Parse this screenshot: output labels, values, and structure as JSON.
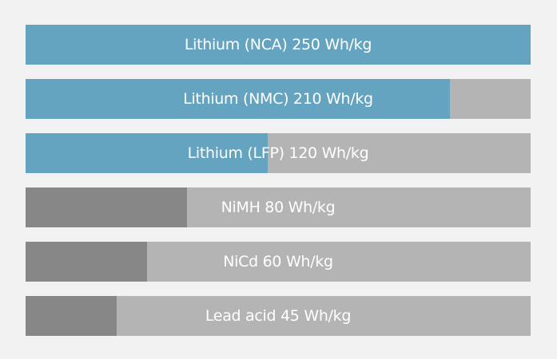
{
  "chart_data": {
    "type": "bar",
    "orientation": "horizontal",
    "unit": "Wh/kg",
    "xlim": [
      0,
      250
    ],
    "grid": false,
    "categories": [
      "Lithium (NCA)",
      "Lithium (NMC)",
      "Lithium (LFP)",
      "NiMH",
      "NiCd",
      "Lead acid"
    ],
    "values": [
      250,
      210,
      120,
      80,
      60,
      45
    ],
    "labels": [
      "Lithium (NCA) 250 Wh/kg",
      "Lithium (NMC) 210 Wh/kg",
      "Lithium (LFP) 120 Wh/kg",
      "NiMH 80 Wh/kg",
      "NiCd 60 Wh/kg",
      "Lead acid 45 Wh/kg"
    ],
    "colors": [
      "#65a4c0",
      "#65a4c0",
      "#65a4c0",
      "#878787",
      "#878787",
      "#878787"
    ],
    "track_color": "#b4b4b4",
    "background_color": "#f2f2f2"
  }
}
